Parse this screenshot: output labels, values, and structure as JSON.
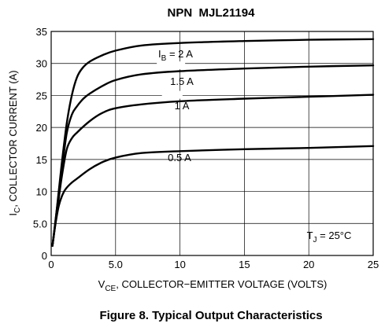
{
  "chart_data": {
    "type": "line",
    "title": "NPN  MJL21194",
    "caption": "Figure 8. Typical Output Characteristics",
    "xlabel": {
      "main": "V",
      "sub": "CE",
      "rest": ", COLLECTOR−EMITTER VOLTAGE (VOLTS)"
    },
    "ylabel": {
      "main": "I",
      "sub": "C",
      "rest": ", COLLECTOR CURRENT (A)"
    },
    "xlim": [
      0,
      25
    ],
    "ylim": [
      0,
      35
    ],
    "grid": true,
    "x_ticks": [
      {
        "value": 0,
        "label": "0"
      },
      {
        "value": 5,
        "label": "5.0"
      },
      {
        "value": 10,
        "label": "10"
      },
      {
        "value": 15,
        "label": "15"
      },
      {
        "value": 20,
        "label": "20"
      },
      {
        "value": 25,
        "label": "25"
      }
    ],
    "y_ticks": [
      {
        "value": 0,
        "label": "0"
      },
      {
        "value": 5,
        "label": "5.0"
      },
      {
        "value": 10,
        "label": "10"
      },
      {
        "value": 15,
        "label": "15"
      },
      {
        "value": 20,
        "label": "20"
      },
      {
        "value": 25,
        "label": "25"
      },
      {
        "value": 30,
        "label": "30"
      },
      {
        "value": 35,
        "label": "35"
      }
    ],
    "annotation": {
      "main": "T",
      "sub": "J",
      "rest": " = 25°C"
    },
    "series": [
      {
        "name": "0.5 A",
        "label": {
          "main": "",
          "sub": "",
          "rest": "0.5 A"
        },
        "x": [
          0.1,
          0.3,
          0.6,
          1.0,
          1.5,
          2.0,
          3.0,
          4.0,
          5.0,
          7.0,
          10.0,
          15.0,
          20.0,
          25.0
        ],
        "y": [
          1.5,
          4.5,
          7.8,
          10.0,
          11.2,
          12.0,
          13.5,
          14.6,
          15.3,
          16.0,
          16.3,
          16.6,
          16.8,
          17.1
        ]
      },
      {
        "name": "1 A",
        "label": {
          "main": "",
          "sub": "",
          "rest": "1 A"
        },
        "x": [
          0.1,
          0.4,
          0.8,
          1.2,
          1.6,
          2.0,
          3.0,
          4.0,
          5.0,
          7.0,
          10.0,
          15.0,
          20.0,
          25.0
        ],
        "y": [
          1.5,
          6.0,
          12.0,
          16.5,
          18.3,
          19.2,
          21.0,
          22.3,
          23.0,
          23.6,
          24.1,
          24.5,
          24.8,
          25.1
        ]
      },
      {
        "name": "1.5 A",
        "label": {
          "main": "",
          "sub": "",
          "rest": "1.5 A"
        },
        "x": [
          0.1,
          0.4,
          0.8,
          1.2,
          1.6,
          2.0,
          2.5,
          3.0,
          4.0,
          5.0,
          7.0,
          10.0,
          15.0,
          20.0,
          25.0
        ],
        "y": [
          1.5,
          6.5,
          13.0,
          19.0,
          22.0,
          23.3,
          24.5,
          25.3,
          26.5,
          27.4,
          28.3,
          28.8,
          29.2,
          29.5,
          29.7
        ]
      },
      {
        "name": "2 A",
        "label": {
          "main": "I",
          "sub": "B",
          "rest": " = 2 A"
        },
        "x": [
          0.1,
          0.4,
          0.8,
          1.2,
          1.6,
          2.0,
          2.4,
          3.0,
          4.0,
          5.0,
          7.0,
          10.0,
          15.0,
          20.0,
          25.0
        ],
        "y": [
          1.5,
          6.5,
          14.0,
          20.5,
          25.0,
          27.8,
          29.2,
          30.3,
          31.3,
          32.0,
          32.8,
          33.2,
          33.5,
          33.7,
          33.8
        ]
      }
    ]
  }
}
